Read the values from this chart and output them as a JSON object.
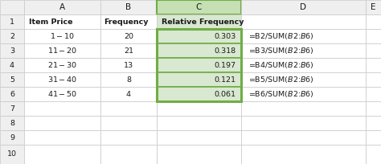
{
  "col_headers": [
    "A",
    "B",
    "C",
    "D",
    "E"
  ],
  "col_a": [
    "$1 - $10",
    "$11 - $20",
    "$21 - $30",
    "$31 - $40",
    "$41 - $50"
  ],
  "col_b": [
    "20",
    "21",
    "13",
    "8",
    "4"
  ],
  "col_c": [
    "0.303",
    "0.318",
    "0.197",
    "0.121",
    "0.061"
  ],
  "col_d": [
    "=B2/SUM($B$2:$B$6)",
    "=B3/SUM($B$2:$B$6)",
    "=B4/SUM($B$2:$B$6)",
    "=B5/SUM($B$2:$B$6)",
    "=B6/SUM($B$2:$B$6)"
  ],
  "h1_a": "Item Price",
  "h1_b": "Frequency",
  "h1_c": "Relative Frequency",
  "bg_color": "#ffffff",
  "col_header_color": "#efefef",
  "row_num_color": "#efefef",
  "selected_col_header_color": "#c6e0b4",
  "selected_cell_color": "#d9e8d0",
  "selected_border": "#70ad47",
  "grid_color": "#c8c8c8",
  "text_color": "#1a1a1a"
}
